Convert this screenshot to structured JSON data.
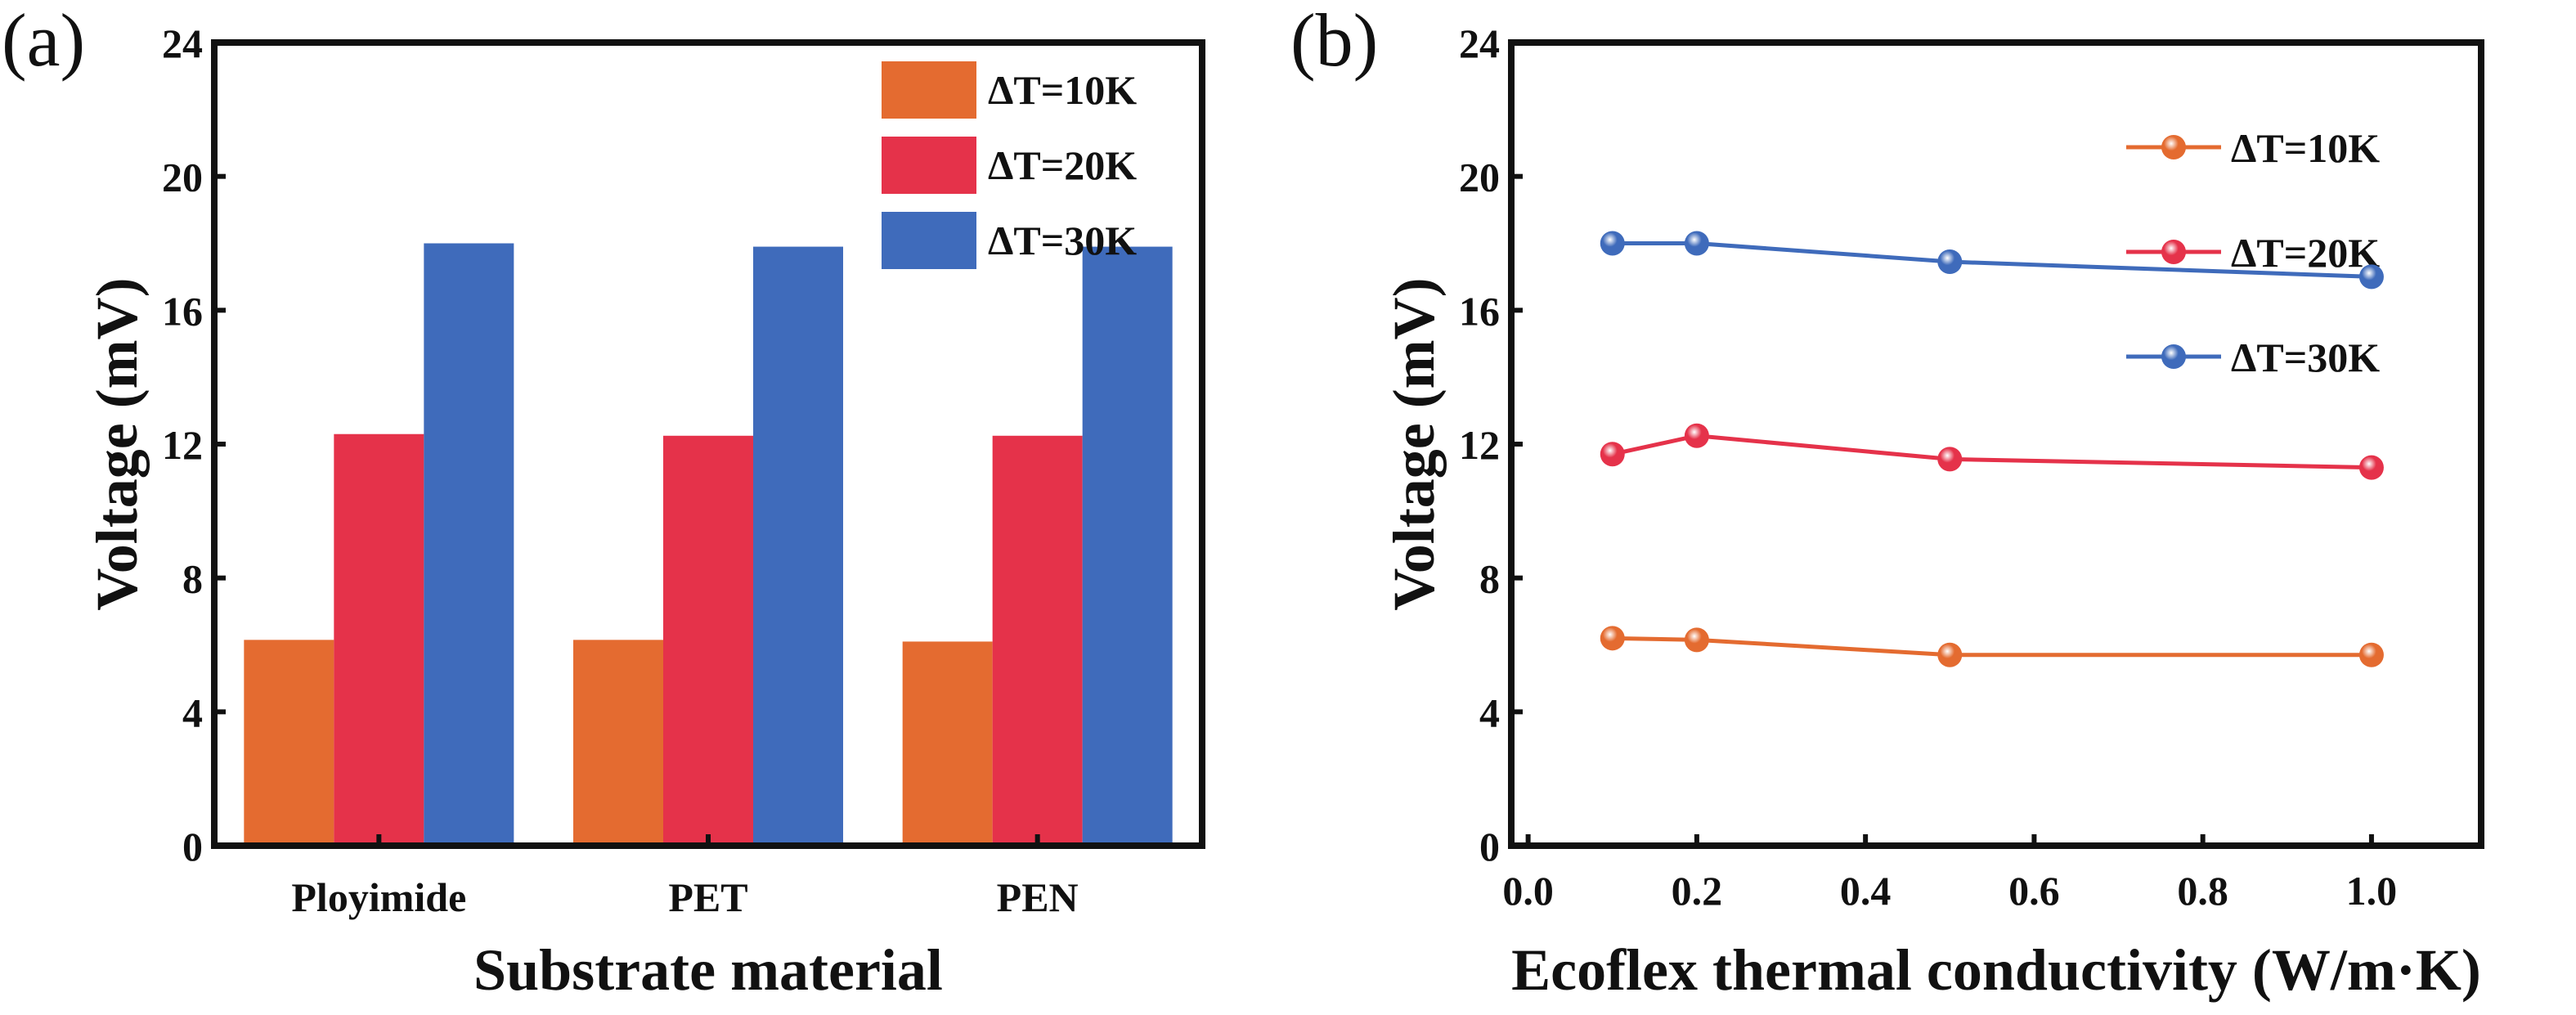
{
  "chart_data": [
    {
      "type": "bar",
      "panel_label": "(a)",
      "categories": [
        "Ployimide",
        "PET",
        "PEN"
      ],
      "series": [
        {
          "name": "ΔT=10K",
          "color": "#e46b30",
          "values": [
            6.15,
            6.15,
            6.1
          ]
        },
        {
          "name": "ΔT=20K",
          "color": "#e5324a",
          "values": [
            12.3,
            12.25,
            12.25
          ]
        },
        {
          "name": "ΔT=30K",
          "color": "#3f6bbb",
          "values": [
            18.0,
            17.9,
            17.9
          ]
        }
      ],
      "xlabel": "Substrate material",
      "ylabel": "Voltage (mV)",
      "ylim": [
        0,
        24
      ],
      "yticks": [
        "0",
        "4",
        "8",
        "12",
        "16",
        "20",
        "24"
      ],
      "legend": "top-right",
      "grid": false
    },
    {
      "type": "line",
      "panel_label": "(b)",
      "x": [
        0.1,
        0.2,
        0.5,
        1.0
      ],
      "series": [
        {
          "name": "ΔT=10K",
          "color": "#e46b30",
          "values": [
            6.2,
            6.15,
            5.7,
            5.7
          ]
        },
        {
          "name": "ΔT=20K",
          "color": "#e5324a",
          "values": [
            11.7,
            12.25,
            11.55,
            11.3
          ]
        },
        {
          "name": "ΔT=30K",
          "color": "#3f6bbb",
          "values": [
            18.0,
            18.0,
            17.45,
            17.0
          ]
        }
      ],
      "xlabel": "Ecoflex thermal conductivity (W/m·K)",
      "ylabel": "Voltage (mV)",
      "xlim": [
        -0.02,
        1.13
      ],
      "ylim": [
        0,
        24
      ],
      "xticks": [
        "0.0",
        "0.2",
        "0.4",
        "0.6",
        "0.8",
        "1.0"
      ],
      "yticks": [
        "0",
        "4",
        "8",
        "12",
        "16",
        "20",
        "24"
      ],
      "legend": "top-right",
      "grid": false
    }
  ]
}
